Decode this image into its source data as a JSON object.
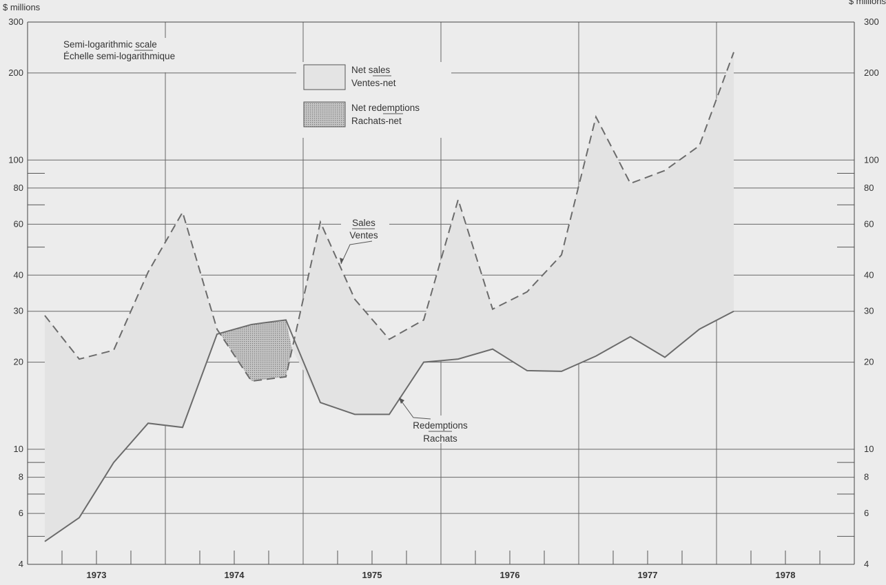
{
  "chart_data": {
    "type": "line",
    "yscale": "log",
    "ylim": [
      4,
      300
    ],
    "yticks": [
      4,
      6,
      8,
      10,
      20,
      30,
      40,
      60,
      80,
      100,
      200,
      300
    ],
    "y_unit_left": "$ millions",
    "y_unit_right": "$ millions",
    "scale_note": [
      "Semi-logarithmic scale",
      "Échelle semi-logarithmique"
    ],
    "years": [
      "1973",
      "1974",
      "1975",
      "1976",
      "1977",
      "1978"
    ],
    "x": [
      "1973-Q1",
      "1973-Q2",
      "1973-Q3",
      "1973-Q4",
      "1974-Q1",
      "1974-Q2",
      "1974-Q3",
      "1974-Q4",
      "1975-Q1",
      "1975-Q2",
      "1975-Q3",
      "1975-Q4",
      "1976-Q1",
      "1976-Q2",
      "1976-Q3",
      "1976-Q4",
      "1977-Q1",
      "1977-Q2",
      "1977-Q3",
      "1977-Q4",
      "1978-Q1"
    ],
    "series": [
      {
        "name": "Sales / Ventes",
        "style": "dashed",
        "values": [
          29,
          20.5,
          22,
          41,
          66,
          26,
          17.2,
          17.8,
          61,
          33,
          24,
          28,
          73,
          30.5,
          35,
          47,
          141,
          83,
          92,
          112,
          236
        ]
      },
      {
        "name": "Redemptions / Rachats",
        "style": "solid",
        "values": [
          4.8,
          5.8,
          9,
          12.3,
          11.9,
          25,
          27,
          28,
          14.5,
          13.2,
          13.2,
          20,
          20.5,
          22.2,
          18.7,
          18.6,
          21,
          24.5,
          20.8,
          26,
          30
        ]
      }
    ],
    "legend": [
      {
        "label1": "Net sales",
        "label2": "Ventes-net",
        "fill": "#e4e4e4"
      },
      {
        "label1": "Net redemptions",
        "label2": "Rachats-net",
        "fill": "#b0b0b0"
      }
    ],
    "annotations": {
      "sales": [
        "Sales",
        "Ventes"
      ],
      "redemptions": [
        "Redemptions",
        "Rachats"
      ]
    },
    "colors": {
      "background": "#ececec",
      "line": "#6b6b6b",
      "grid": "#666666"
    }
  }
}
